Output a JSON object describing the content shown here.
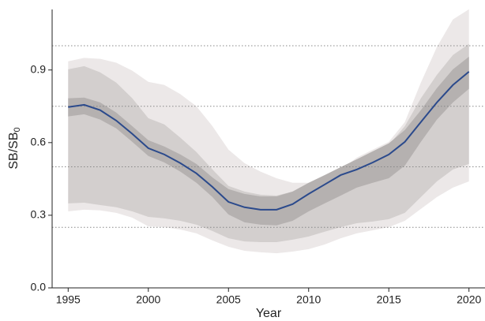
{
  "chart_data": {
    "type": "ribbon-line",
    "xlabel": "Year",
    "ylabel": [
      "SB/SB",
      "0"
    ],
    "x": [
      1995,
      1996,
      1997,
      1998,
      1999,
      2000,
      2001,
      2002,
      2003,
      2004,
      2005,
      2006,
      2007,
      2008,
      2009,
      2010,
      2011,
      2012,
      2013,
      2014,
      2015,
      2016,
      2017,
      2018,
      2019,
      2020
    ],
    "series": [
      {
        "color": "#2b4a8c",
        "values": [
          0.747,
          0.756,
          0.734,
          0.691,
          0.636,
          0.577,
          0.551,
          0.515,
          0.473,
          0.417,
          0.355,
          0.333,
          0.323,
          0.323,
          0.346,
          0.388,
          0.427,
          0.466,
          0.489,
          0.518,
          0.551,
          0.603,
          0.685,
          0.766,
          0.838,
          0.893
        ]
      }
    ],
    "bands": [
      {
        "color": "#ece8e8",
        "upper": [
          0.936,
          0.95,
          0.946,
          0.93,
          0.897,
          0.851,
          0.838,
          0.8,
          0.75,
          0.668,
          0.571,
          0.515,
          0.48,
          0.453,
          0.434,
          0.434,
          0.447,
          0.489,
          0.538,
          0.571,
          0.603,
          0.685,
          0.848,
          0.995,
          1.109,
          1.151
        ],
        "lower": [
          0.316,
          0.323,
          0.32,
          0.31,
          0.29,
          0.254,
          0.251,
          0.241,
          0.225,
          0.196,
          0.17,
          0.153,
          0.147,
          0.143,
          0.15,
          0.16,
          0.179,
          0.205,
          0.225,
          0.238,
          0.251,
          0.277,
          0.326,
          0.375,
          0.414,
          0.44
        ]
      },
      {
        "color": "#d3cfce",
        "upper": [
          0.903,
          0.916,
          0.89,
          0.848,
          0.783,
          0.701,
          0.675,
          0.62,
          0.561,
          0.489,
          0.421,
          0.398,
          0.385,
          0.381,
          0.398,
          0.427,
          0.447,
          0.48,
          0.521,
          0.554,
          0.59,
          0.668,
          0.783,
          0.88,
          0.962,
          1.008
        ],
        "lower": [
          0.349,
          0.352,
          0.342,
          0.333,
          0.316,
          0.293,
          0.287,
          0.277,
          0.261,
          0.235,
          0.205,
          0.192,
          0.189,
          0.189,
          0.199,
          0.212,
          0.232,
          0.251,
          0.267,
          0.274,
          0.284,
          0.31,
          0.375,
          0.44,
          0.489,
          0.512
        ]
      },
      {
        "color": "#b5b1b0",
        "upper": [
          0.783,
          0.786,
          0.766,
          0.724,
          0.668,
          0.61,
          0.584,
          0.551,
          0.512,
          0.456,
          0.408,
          0.388,
          0.378,
          0.378,
          0.398,
          0.434,
          0.466,
          0.499,
          0.531,
          0.564,
          0.597,
          0.652,
          0.734,
          0.825,
          0.903,
          0.955
        ],
        "lower": [
          0.708,
          0.717,
          0.695,
          0.659,
          0.603,
          0.545,
          0.518,
          0.48,
          0.434,
          0.375,
          0.303,
          0.271,
          0.261,
          0.258,
          0.277,
          0.316,
          0.349,
          0.381,
          0.414,
          0.434,
          0.453,
          0.505,
          0.603,
          0.695,
          0.766,
          0.822
        ]
      }
    ],
    "hlines": [
      0.25,
      0.5,
      0.75,
      1.0
    ],
    "hline_color": "#888888",
    "xlim": [
      1994,
      2021
    ],
    "xticks": [
      1995,
      2000,
      2005,
      2010,
      2015,
      2020
    ],
    "ylim": [
      0,
      1.15
    ],
    "yticks": [
      {
        "value": 0,
        "label": "0.0"
      },
      0.3,
      0.6,
      0.9
    ]
  }
}
